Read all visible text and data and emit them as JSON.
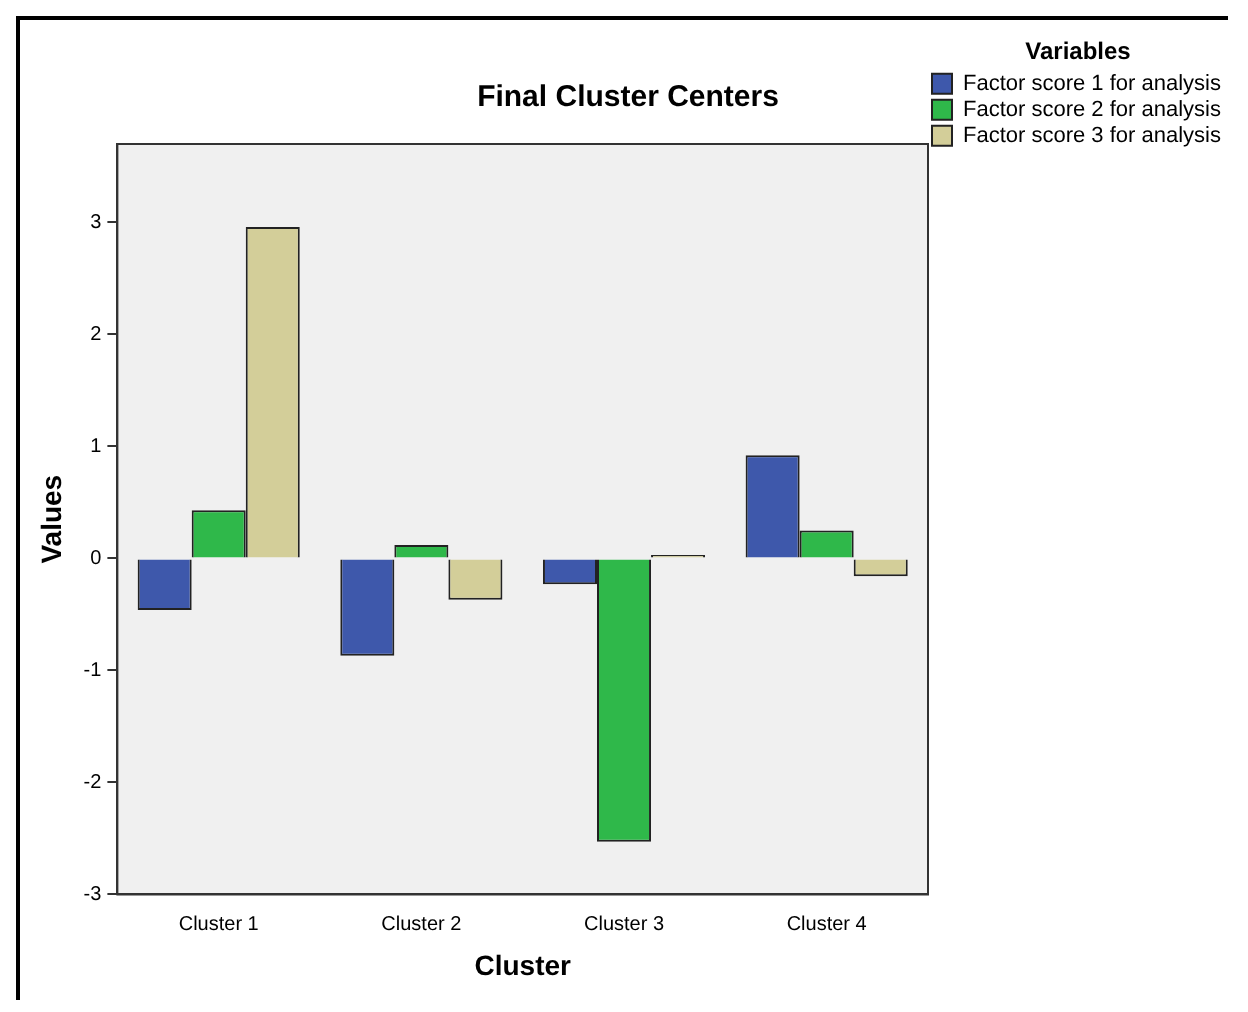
{
  "chart_data": {
    "type": "bar",
    "title": "Final Cluster Centers",
    "xlabel": "Cluster",
    "ylabel": "Values",
    "legend_title": "Variables",
    "categories": [
      "Cluster 1",
      "Cluster 2",
      "Cluster 3",
      "Cluster 4"
    ],
    "series": [
      {
        "name": "Factor score 1 for analysis",
        "color": "#3e58ab",
        "values": [
          -0.46,
          -0.87,
          -0.23,
          0.92
        ]
      },
      {
        "name": "Factor score 2 for analysis",
        "color": "#2fb84a",
        "values": [
          0.43,
          0.12,
          -2.53,
          0.25
        ]
      },
      {
        "name": "Factor score 3 for analysis",
        "color": "#d3ce99",
        "values": [
          2.96,
          -0.37,
          0.03,
          -0.16
        ]
      }
    ],
    "ylim": [
      -3,
      3.7
    ],
    "yticks": [
      -3,
      -2,
      -1,
      0,
      1,
      2,
      3
    ],
    "grid": false,
    "legend": "top right"
  }
}
